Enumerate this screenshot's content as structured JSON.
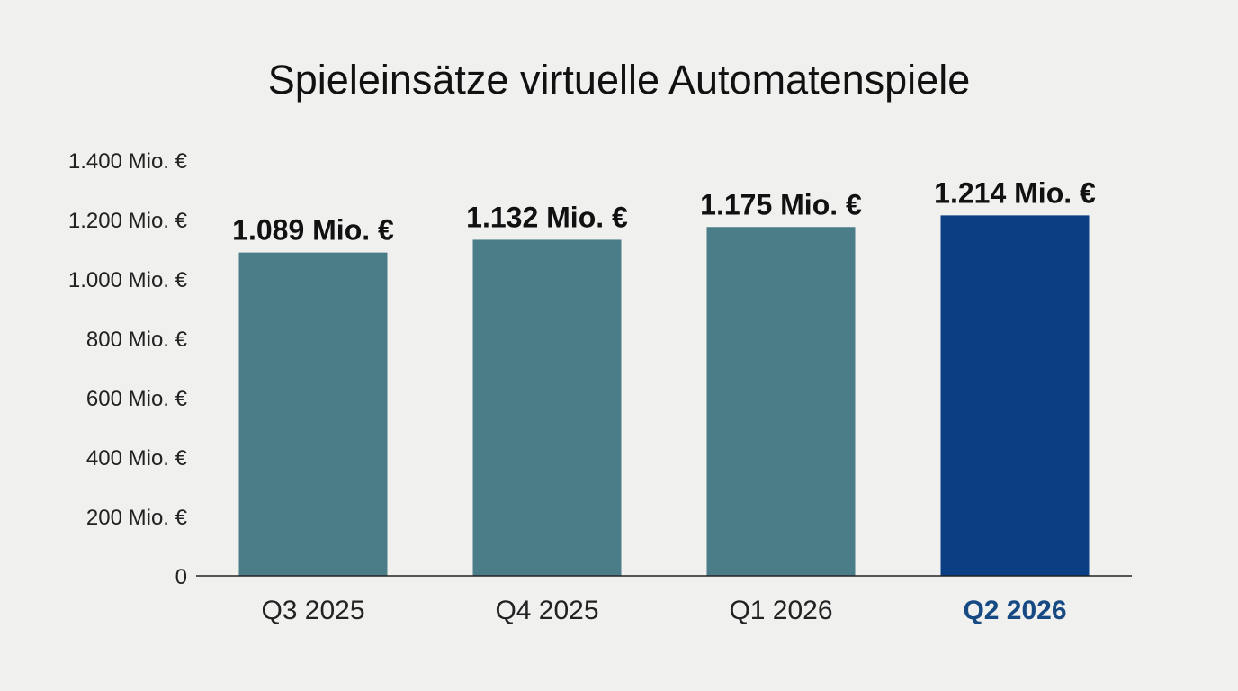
{
  "chart_data": {
    "type": "bar",
    "title": "Spieleinsätze virtuelle Automatenspiele",
    "xlabel": "",
    "ylabel": "",
    "categories": [
      "Q3 2025",
      "Q4 2025",
      "Q1 2026",
      "Q2 2026"
    ],
    "values": [
      1089,
      1132,
      1175,
      1214
    ],
    "data_labels": [
      "1.089 Mio. €",
      "1.132 Mio. €",
      "1.175 Mio. €",
      "1.214 Mio. €"
    ],
    "ylim": [
      0,
      1400
    ],
    "yticks": [
      0,
      200,
      400,
      600,
      800,
      1000,
      1200,
      1400
    ],
    "ytick_labels": [
      "0",
      "200 Mio. €",
      "400 Mio. €",
      "600 Mio. €",
      "800 Mio. €",
      "1.000 Mio. €",
      "1.200 Mio. €",
      "1.400 Mio. €"
    ],
    "highlight_index": 3,
    "grid": false,
    "legend": "none",
    "colors": {
      "bar": "#4a7d88",
      "highlight_bar": "#0a3f84",
      "highlight_label": "#174a82",
      "axis": "#222222"
    }
  }
}
